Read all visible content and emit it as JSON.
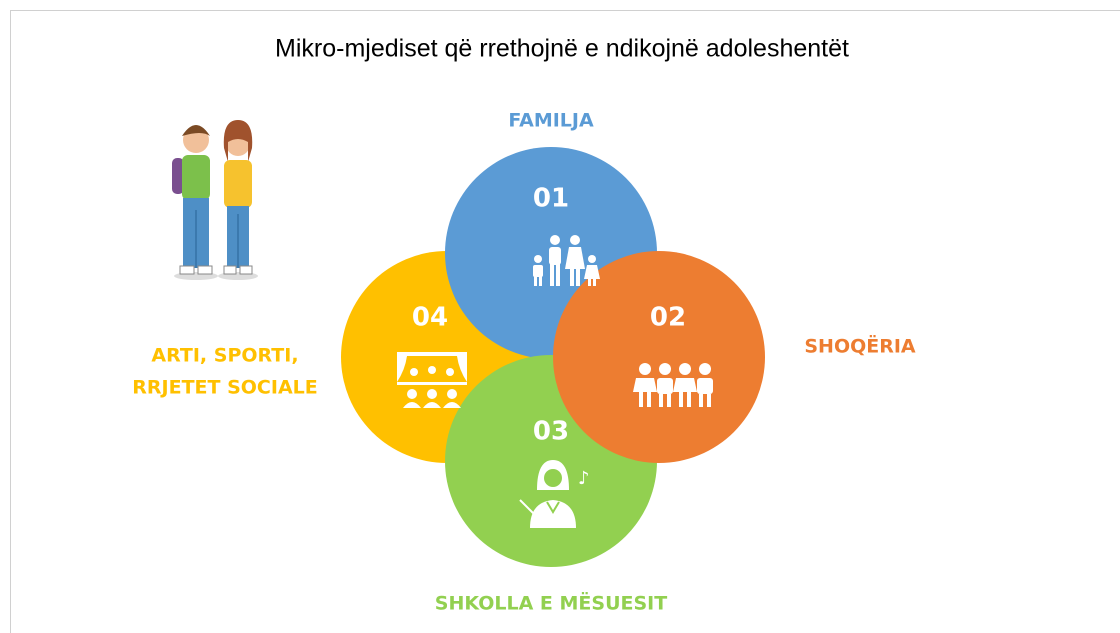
{
  "title": "Mikro-mjediset që rrethojnë e ndikojnë adoleshentët",
  "nodes": [
    {
      "number": "01",
      "label": [
        "FAMILJA"
      ]
    },
    {
      "number": "02",
      "label": [
        "SHOQËRIA"
      ]
    },
    {
      "number": "03",
      "label": [
        "SHKOLLA E MËSUESIT"
      ]
    },
    {
      "number": "04",
      "label": [
        "ARTI, SPORTI,",
        "RRJETET SOCIALE"
      ]
    }
  ]
}
